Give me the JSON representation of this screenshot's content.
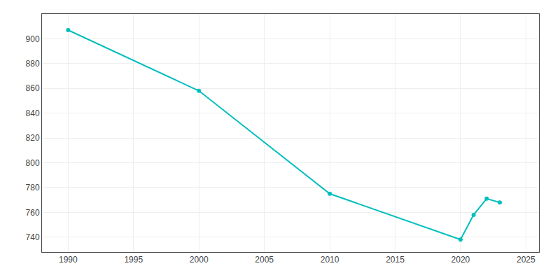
{
  "chart_data": {
    "type": "line",
    "x": [
      1990,
      2000,
      2010,
      2020,
      2021,
      2022,
      2023
    ],
    "values": [
      907,
      858,
      775,
      738,
      758,
      771,
      768
    ],
    "color": "#00BEBE",
    "marker": "circle",
    "xlim": [
      1988,
      2026
    ],
    "ylim": [
      728,
      920
    ],
    "xticks": [
      1990,
      1995,
      2000,
      2005,
      2010,
      2015,
      2020,
      2025
    ],
    "yticks": [
      740,
      760,
      780,
      800,
      820,
      840,
      860,
      880,
      900
    ],
    "grid": true
  }
}
